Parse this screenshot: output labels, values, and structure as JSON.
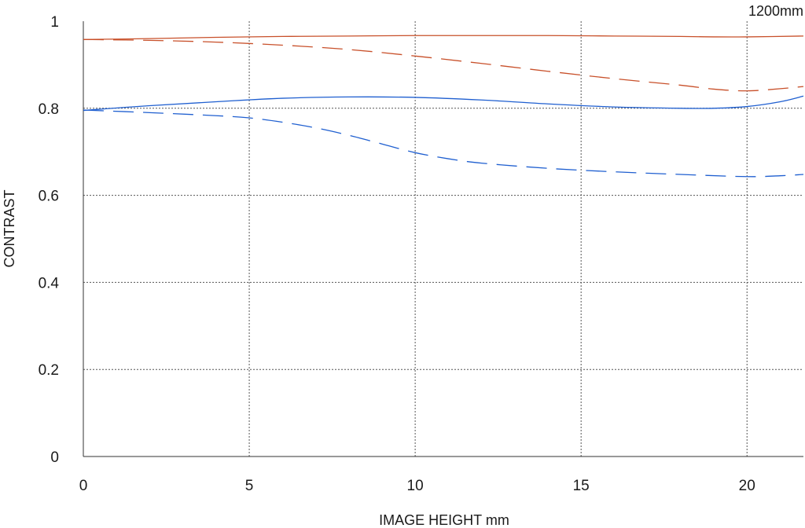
{
  "chart_data": {
    "type": "line",
    "title": "",
    "corner_label": "1200mm",
    "xlabel": "IMAGE HEIGHT  mm",
    "ylabel": "CONTRAST",
    "xlim": [
      0,
      21.7
    ],
    "ylim": [
      0,
      1
    ],
    "xticks": [
      0,
      5,
      10,
      15,
      20
    ],
    "xtick_labels": [
      "0",
      "5",
      "10",
      "15",
      "20"
    ],
    "yticks": [
      0,
      0.2,
      0.4,
      0.6,
      0.8,
      1
    ],
    "ytick_labels": [
      "0",
      "0.2",
      "0.4",
      "0.6",
      "0.8",
      "1"
    ],
    "grid": true,
    "legend": "none",
    "series": [
      {
        "color": "#c8502a",
        "style": "solid",
        "x": [
          0,
          2,
          4,
          6,
          8,
          10,
          12,
          14,
          16,
          18,
          19,
          20,
          21.7
        ],
        "y": [
          0.958,
          0.96,
          0.963,
          0.965,
          0.966,
          0.967,
          0.967,
          0.967,
          0.966,
          0.965,
          0.964,
          0.964,
          0.966
        ]
      },
      {
        "color": "#c8502a",
        "style": "dashed",
        "x": [
          0,
          2,
          4,
          6,
          8,
          10,
          12,
          14,
          16,
          18,
          19,
          20,
          21,
          21.7
        ],
        "y": [
          0.958,
          0.956,
          0.952,
          0.945,
          0.935,
          0.92,
          0.903,
          0.885,
          0.868,
          0.853,
          0.844,
          0.84,
          0.845,
          0.85
        ]
      },
      {
        "color": "#1f5fd0",
        "style": "solid",
        "x": [
          0,
          2,
          4,
          6,
          8,
          10,
          12,
          14,
          16,
          18,
          19,
          20,
          21,
          21.7
        ],
        "y": [
          0.795,
          0.806,
          0.815,
          0.823,
          0.826,
          0.825,
          0.819,
          0.81,
          0.803,
          0.8,
          0.8,
          0.804,
          0.815,
          0.828
        ]
      },
      {
        "color": "#1f5fd0",
        "style": "dashed",
        "x": [
          0,
          2,
          4,
          5,
          6,
          7,
          8,
          9,
          10,
          11,
          12,
          14,
          16,
          18,
          20,
          21,
          21.7
        ],
        "y": [
          0.796,
          0.79,
          0.783,
          0.778,
          0.768,
          0.755,
          0.738,
          0.718,
          0.698,
          0.684,
          0.674,
          0.662,
          0.654,
          0.648,
          0.643,
          0.645,
          0.648
        ]
      }
    ]
  }
}
